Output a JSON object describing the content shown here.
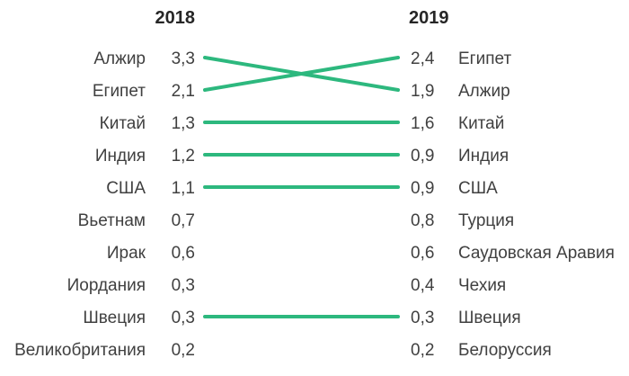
{
  "chart_data": {
    "type": "slopegraph",
    "headers": {
      "left": "2018",
      "right": "2019"
    },
    "left": [
      {
        "label": "Алжир",
        "value": "3,3"
      },
      {
        "label": "Египет",
        "value": "2,1"
      },
      {
        "label": "Китай",
        "value": "1,3"
      },
      {
        "label": "Индия",
        "value": "1,2"
      },
      {
        "label": "США",
        "value": "1,1"
      },
      {
        "label": "Вьетнам",
        "value": "0,7"
      },
      {
        "label": "Ирак",
        "value": "0,6"
      },
      {
        "label": "Иордания",
        "value": "0,3"
      },
      {
        "label": "Швеция",
        "value": "0,3"
      },
      {
        "label": "Великобритания",
        "value": "0,2"
      }
    ],
    "right": [
      {
        "value": "2,4",
        "label": "Египет"
      },
      {
        "value": "1,9",
        "label": "Алжир"
      },
      {
        "value": "1,6",
        "label": "Китай"
      },
      {
        "value": "0,9",
        "label": "Индия"
      },
      {
        "value": "0,9",
        "label": "США"
      },
      {
        "value": "0,8",
        "label": "Турция"
      },
      {
        "value": "0,6",
        "label": "Саудовская Аравия"
      },
      {
        "value": "0,4",
        "label": "Чехия"
      },
      {
        "value": "0,3",
        "label": "Швеция"
      },
      {
        "value": "0,2",
        "label": "Белоруссия"
      }
    ],
    "connections": [
      {
        "label": "Алжир",
        "left_row": 0,
        "right_row": 1
      },
      {
        "label": "Египет",
        "left_row": 1,
        "right_row": 0
      },
      {
        "label": "Китай",
        "left_row": 2,
        "right_row": 2
      },
      {
        "label": "Индия",
        "left_row": 3,
        "right_row": 3
      },
      {
        "label": "США",
        "left_row": 4,
        "right_row": 4
      },
      {
        "label": "Швеция",
        "left_row": 8,
        "right_row": 8
      }
    ],
    "line_color": "#2db87e",
    "text_color": "#404040",
    "header_color": "#262626",
    "background": "#ffffff"
  }
}
